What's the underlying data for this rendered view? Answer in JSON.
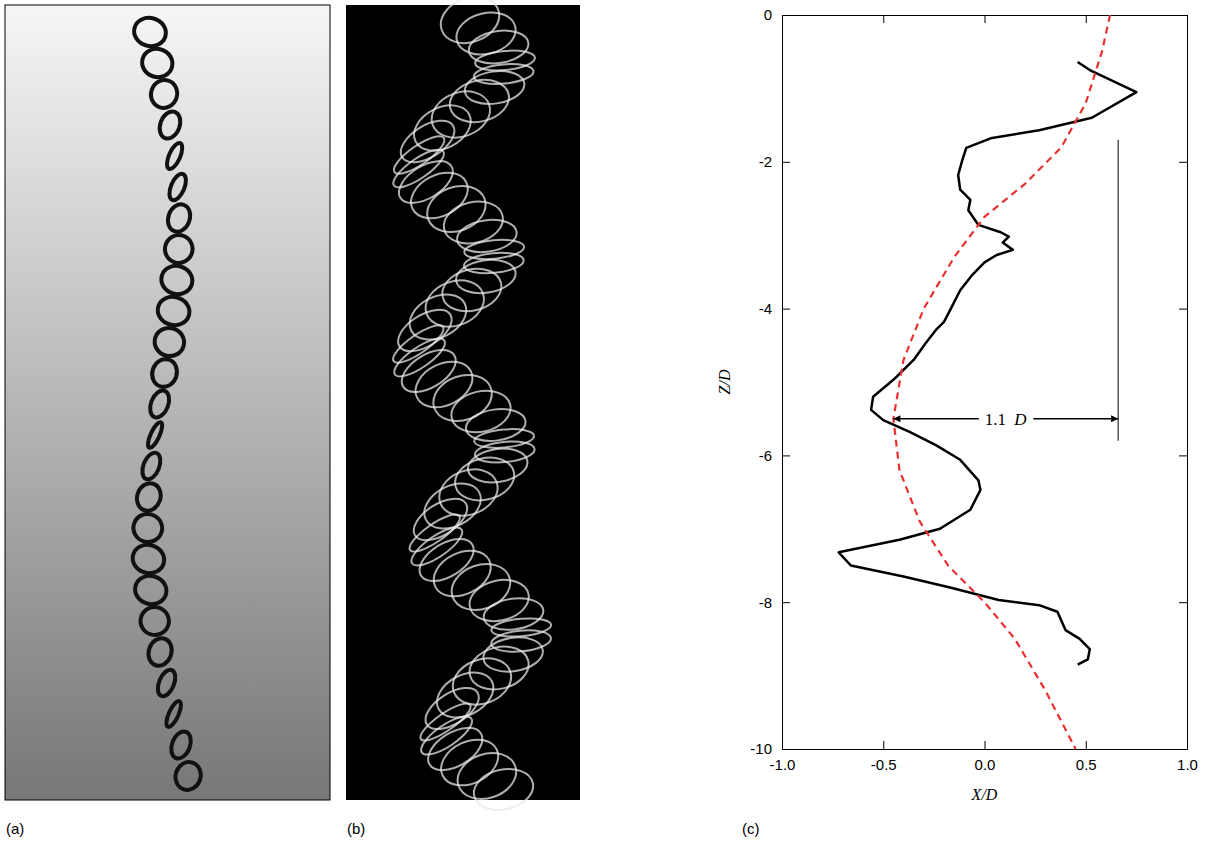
{
  "figure_labels": [
    "(a)",
    "(b)",
    "(c)"
  ],
  "chart_data": {
    "type": "line",
    "x_label": "X/D",
    "y_label": "Z/D",
    "xlim": [
      -1,
      1
    ],
    "ylim": [
      -10,
      0
    ],
    "xticks": [
      {
        "value": -1,
        "label": "-1.0"
      },
      -0.5,
      {
        "value": 0,
        "label": "0.0"
      },
      0.5,
      {
        "value": 1,
        "label": "1.0"
      }
    ],
    "yticks": [
      0,
      -2,
      -4,
      -6,
      -8,
      -10
    ],
    "series": [
      {
        "color": "#000000",
        "line_style": "solid",
        "x": [
          0.46,
          0.52,
          0.75,
          0.53,
          0.27,
          0.03,
          -0.09,
          -0.11,
          -0.13,
          -0.12,
          -0.07,
          -0.08,
          -0.03,
          0.08,
          0.12,
          0.09,
          0.14,
          0.06,
          0.0,
          -0.06,
          -0.12,
          -0.17,
          -0.2,
          -0.24,
          -0.29,
          -0.35,
          -0.45,
          -0.55,
          -0.56,
          -0.5,
          -0.37,
          -0.24,
          -0.12,
          -0.03,
          -0.02,
          -0.07,
          -0.22,
          -0.42,
          -0.6,
          -0.72,
          -0.66,
          -0.4,
          -0.17,
          0.07,
          0.27,
          0.36,
          0.4,
          0.47,
          0.52,
          0.51,
          0.46
        ],
        "values": [
          -0.64,
          -0.75,
          -1.05,
          -1.4,
          -1.57,
          -1.68,
          -1.81,
          -1.98,
          -2.18,
          -2.38,
          -2.52,
          -2.66,
          -2.86,
          -2.96,
          -3.02,
          -3.1,
          -3.2,
          -3.27,
          -3.37,
          -3.54,
          -3.75,
          -4.02,
          -4.18,
          -4.29,
          -4.47,
          -4.7,
          -4.97,
          -5.2,
          -5.38,
          -5.52,
          -5.68,
          -5.86,
          -6.06,
          -6.34,
          -6.47,
          -6.74,
          -7.0,
          -7.15,
          -7.25,
          -7.32,
          -7.5,
          -7.65,
          -7.8,
          -7.97,
          -8.04,
          -8.13,
          -8.38,
          -8.5,
          -8.64,
          -8.78,
          -8.85
        ]
      },
      {
        "color": "#e8312f",
        "line_style": "dashed",
        "x": [
          0.62,
          0.58,
          0.5,
          0.38,
          0.2,
          0.0,
          -0.15,
          -0.3,
          -0.4,
          -0.45,
          -0.42,
          -0.32,
          -0.18,
          0.0,
          0.15,
          0.3,
          0.45
        ],
        "values": [
          0,
          -0.5,
          -1.2,
          -1.8,
          -2.3,
          -2.75,
          -3.3,
          -4.0,
          -4.7,
          -5.5,
          -6.2,
          -6.9,
          -7.5,
          -8.0,
          -8.5,
          -9.2,
          -10
        ]
      }
    ],
    "annotations": [
      {
        "text": "1.1 D",
        "x": [
          -0.45,
          0.66
        ],
        "y": -5.5,
        "line_x": 0.66,
        "line_y": [
          -1.7,
          -5.8
        ]
      }
    ]
  }
}
